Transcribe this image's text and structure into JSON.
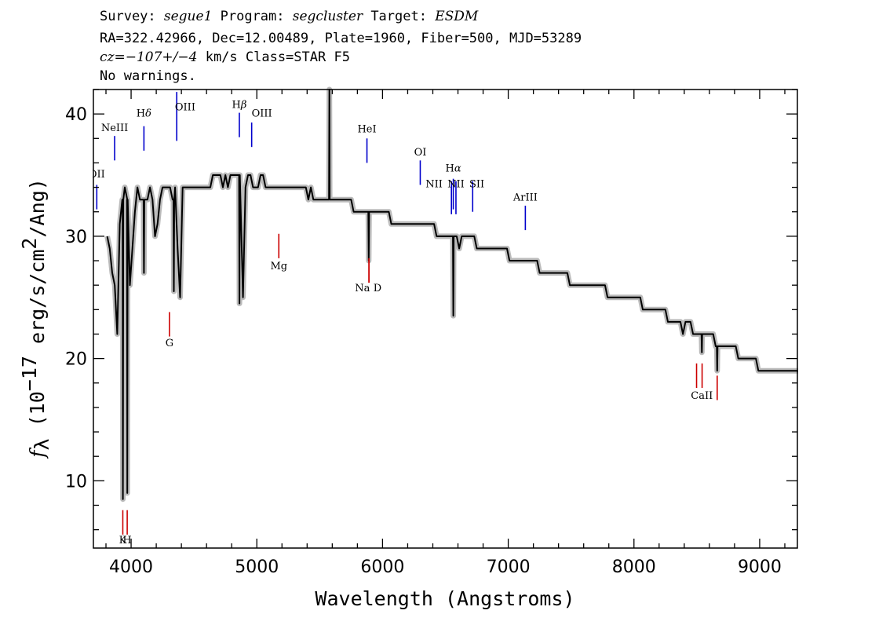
{
  "header": {
    "line1": [
      {
        "text": "Survey: ",
        "italic": false
      },
      {
        "text": "segue1",
        "italic": true
      },
      {
        "text": " Program: ",
        "italic": false
      },
      {
        "text": "segcluster",
        "italic": true
      },
      {
        "text": " Target: ",
        "italic": false
      },
      {
        "text": "ESDM",
        "italic": true
      }
    ],
    "line2": "RA=322.42966, Dec=12.00489, Plate=1960, Fiber=500, MJD=53289",
    "line3": [
      {
        "text": "cz=",
        "italic": true
      },
      {
        "text": "−107+/−4",
        "italic": true
      },
      {
        "text": " km/s Class=STAR F5",
        "italic": false
      }
    ],
    "line4": "No warnings."
  },
  "chart_data": {
    "type": "line",
    "xlabel": "Wavelength (Angstroms)",
    "ylabel": {
      "prefix": "f",
      "subscript": "λ",
      "rest": " (10",
      "exponent": "−17",
      "units": " erg/s/cm",
      "units_exp": "2",
      "tail": "/Ang)"
    },
    "xlim": [
      3700,
      9300
    ],
    "ylim": [
      4.5,
      42
    ],
    "x_ticks": [
      4000,
      5000,
      6000,
      7000,
      8000,
      9000
    ],
    "y_ticks": [
      10,
      20,
      30,
      40
    ],
    "x_minor_step": 200,
    "y_minor_step": 2,
    "colors": {
      "flux": "#000000",
      "error": "#bbbbbb",
      "emission": "#0000cc",
      "absorption": "#cc0000"
    },
    "series": [
      {
        "kind": "flux",
        "x_start": 3810,
        "x_end": 9210,
        "x_step": 20,
        "values": [
          30,
          29,
          27,
          26,
          22,
          31,
          33,
          34,
          33,
          26,
          29,
          32,
          34,
          33,
          33,
          33,
          33,
          34,
          33,
          30,
          31,
          33,
          34,
          34,
          34,
          34,
          33,
          34,
          29,
          25,
          34,
          34,
          34,
          34,
          34,
          34,
          34,
          34,
          34,
          34,
          34,
          34,
          35,
          35,
          35,
          35,
          34,
          35,
          34,
          35,
          35,
          35,
          35,
          33,
          25,
          34,
          35,
          35,
          34,
          34,
          34,
          35,
          35,
          34,
          34,
          34,
          34,
          34,
          34,
          34,
          34,
          34,
          34,
          34,
          34,
          34,
          34,
          34,
          34,
          34,
          33,
          34,
          33,
          33,
          33,
          33,
          33,
          33,
          33,
          33,
          33,
          33,
          33,
          33,
          33,
          33,
          33,
          33,
          32,
          32,
          32,
          32,
          32,
          32,
          32,
          32,
          32,
          32,
          32,
          32,
          32,
          32,
          32,
          31,
          31,
          31,
          31,
          31,
          31,
          31,
          31,
          31,
          31,
          31,
          31,
          31,
          31,
          31,
          31,
          31,
          31,
          30,
          30,
          30,
          30,
          30,
          30,
          30,
          30,
          30,
          29,
          30,
          30,
          30,
          30,
          30,
          30,
          29,
          29,
          29,
          29,
          29,
          29,
          29,
          29,
          29,
          29,
          29,
          29,
          29,
          28,
          28,
          28,
          28,
          28,
          28,
          28,
          28,
          28,
          28,
          28,
          28,
          27,
          27,
          27,
          27,
          27,
          27,
          27,
          27,
          27,
          27,
          27,
          27,
          26,
          26,
          26,
          26,
          26,
          26,
          26,
          26,
          26,
          26,
          26,
          26,
          26,
          26,
          26,
          25,
          25,
          25,
          25,
          25,
          25,
          25,
          25,
          25,
          25,
          25,
          25,
          25,
          25,
          24,
          24,
          24,
          24,
          24,
          24,
          24,
          24,
          24,
          24,
          23,
          23,
          23,
          23,
          23,
          23,
          22,
          23,
          23,
          23,
          22,
          22,
          22,
          22,
          22,
          22,
          22,
          22,
          22,
          21,
          21,
          21,
          21,
          21,
          21,
          21,
          21,
          21,
          20,
          20,
          20,
          20,
          20,
          20,
          20,
          20,
          19,
          19,
          19,
          19,
          19,
          19,
          19,
          19,
          19,
          19,
          19,
          19,
          19,
          19,
          19,
          19,
          19,
          19,
          19,
          19,
          20,
          19,
          19
        ]
      }
    ],
    "spikes": [
      {
        "x": 3935,
        "y": 8.5
      },
      {
        "x": 3970,
        "y": 9
      },
      {
        "x": 4102,
        "y": 27
      },
      {
        "x": 4340,
        "y": 25.5
      },
      {
        "x": 4862,
        "y": 24.5
      },
      {
        "x": 5577,
        "y": 42
      },
      {
        "x": 5890,
        "y": 28
      },
      {
        "x": 6563,
        "y": 23.5
      },
      {
        "x": 8540,
        "y": 20.5
      },
      {
        "x": 8662,
        "y": 19
      }
    ],
    "emission_lines": [
      {
        "label": "OII",
        "x": 3727,
        "y0": 32.2,
        "y1": 34.2,
        "lx": 3727,
        "ly": 34.8
      },
      {
        "label": "NeIII",
        "x": 3869,
        "y0": 36.2,
        "y1": 38.2,
        "lx": 3869,
        "ly": 38.6
      },
      {
        "label": "Hδ",
        "x": 4102,
        "y0": 37.0,
        "y1": 39.0,
        "lx": 4102,
        "ly": 39.8
      },
      {
        "label": "OIII",
        "x": 4363,
        "y0": 37.8,
        "y1": 41.8,
        "lx": 4430,
        "ly": 40.3
      },
      {
        "label": "Hβ",
        "x": 4861,
        "y0": 38.1,
        "y1": 40.1,
        "lx": 4861,
        "ly": 40.5
      },
      {
        "label": "OIII",
        "x": 4959,
        "y0": 37.3,
        "y1": 39.3,
        "lx": 5040,
        "ly": 39.8
      },
      {
        "label": "HeI",
        "x": 5876,
        "y0": 36.0,
        "y1": 38.0,
        "lx": 5876,
        "ly": 38.5
      },
      {
        "label": "OI",
        "x": 6300,
        "y0": 34.2,
        "y1": 36.2,
        "lx": 6300,
        "ly": 36.6
      },
      {
        "label": "NII",
        "x": 6548,
        "y0": 31.8,
        "y1": 34.5,
        "lx": 6410,
        "ly": 34.0
      },
      {
        "label": "Hα",
        "x": 6563,
        "y0": 32.2,
        "y1": 34.7,
        "lx": 6563,
        "ly": 35.3
      },
      {
        "label": "NII",
        "x": 6584,
        "y0": 31.8,
        "y1": 34.5,
        "lx": 6584,
        "ly": 34.0
      },
      {
        "label": "SII",
        "x": 6717,
        "y0": 32.0,
        "y1": 34.5,
        "lx": 6750,
        "ly": 34.0
      },
      {
        "label": "ArIII",
        "x": 7136,
        "y0": 30.5,
        "y1": 32.5,
        "lx": 7136,
        "ly": 32.9
      }
    ],
    "absorption_lines": [
      {
        "label": "K",
        "x": 3934,
        "y0": 5.6,
        "y1": 7.6,
        "lx": 3934,
        "ly": 4.9
      },
      {
        "label": "H",
        "x": 3969,
        "y0": 5.6,
        "y1": 7.6,
        "lx": 3969,
        "ly": 4.9
      },
      {
        "label": "G",
        "x": 4305,
        "y0": 21.8,
        "y1": 23.8,
        "lx": 4305,
        "ly": 21.0
      },
      {
        "label": "Mg",
        "x": 5175,
        "y0": 28.2,
        "y1": 30.2,
        "lx": 5175,
        "ly": 27.3
      },
      {
        "label": "Na",
        "x": 5892,
        "y0": 26.2,
        "y1": 28.2,
        "lx": 5840,
        "ly": 25.5
      },
      {
        "label": "D",
        "x": 5892,
        "y0": 26.2,
        "y1": 28.2,
        "lx": 5960,
        "ly": 25.5
      },
      {
        "label": "CaII",
        "x": 8498,
        "y0": 17.6,
        "y1": 19.6,
        "lx": 8540,
        "ly": 16.7
      },
      {
        "label": "",
        "x": 8542,
        "y0": 17.6,
        "y1": 19.6,
        "lx": 8542,
        "ly": 16.7
      },
      {
        "label": "",
        "x": 8662,
        "y0": 16.6,
        "y1": 18.6,
        "lx": 8662,
        "ly": 16.7
      }
    ]
  }
}
